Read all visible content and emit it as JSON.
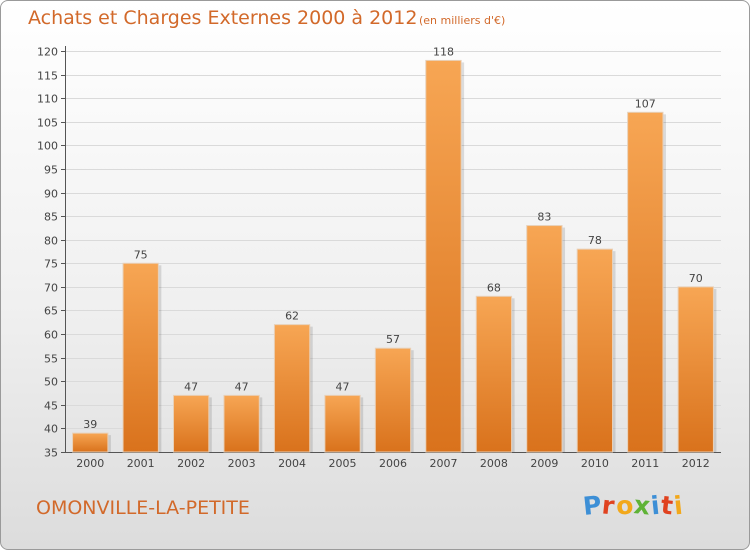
{
  "header": {
    "title": "Achats et Charges Externes 2000 à 2012",
    "subtitle": "(en milliers d'€)"
  },
  "footer": {
    "commune": "OMONVILLE-LA-PETITE",
    "brand_letters": [
      {
        "ch": "P",
        "color": "#3d8fd6"
      },
      {
        "ch": "r",
        "color": "#e0421f"
      },
      {
        "ch": "o",
        "color": "#f2a81b"
      },
      {
        "ch": "x",
        "color": "#5fb336"
      },
      {
        "ch": "i",
        "color": "#3d8fd6"
      },
      {
        "ch": "t",
        "color": "#e0421f"
      },
      {
        "ch": "i",
        "color": "#f2a81b"
      }
    ]
  },
  "colors": {
    "title": "#d2692a",
    "bar_light": "#f7a654",
    "bar_dark": "#d9721c"
  },
  "chart_data": {
    "type": "bar",
    "categories": [
      "2000",
      "2001",
      "2002",
      "2003",
      "2004",
      "2005",
      "2006",
      "2007",
      "2008",
      "2009",
      "2010",
      "2011",
      "2012"
    ],
    "values": [
      39,
      75,
      47,
      47,
      62,
      47,
      57,
      118,
      68,
      83,
      78,
      107,
      70
    ],
    "ylim": [
      35,
      120
    ],
    "yticks": [
      35,
      40,
      45,
      50,
      55,
      60,
      65,
      70,
      75,
      80,
      85,
      90,
      95,
      100,
      105,
      110,
      115,
      120
    ],
    "grid": true,
    "data_labels": true
  }
}
